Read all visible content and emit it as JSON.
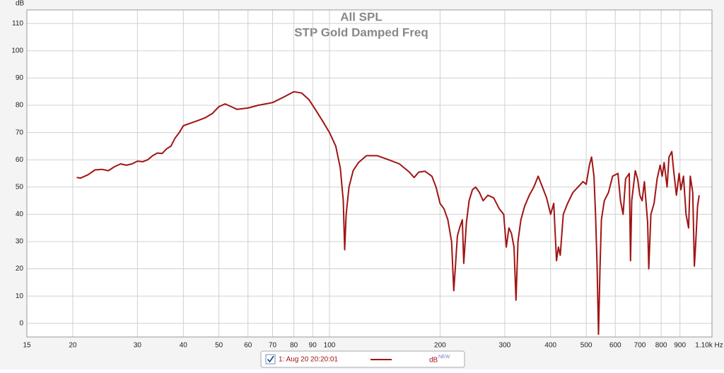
{
  "chart_data": {
    "type": "line",
    "title": "All SPL",
    "subtitle": "STP Gold Damped Freq",
    "y_label": "dB",
    "xscale": "log",
    "grid": true,
    "xlim": [
      15,
      1100
    ],
    "ylim": [
      -5,
      115
    ],
    "xticks": [
      15,
      20,
      30,
      40,
      50,
      60,
      70,
      80,
      90,
      100,
      200,
      300,
      400,
      500,
      600,
      700,
      800,
      900,
      {
        "value": 1100,
        "label": "1.10k Hz"
      }
    ],
    "yticks": [
      0,
      10,
      20,
      30,
      40,
      50,
      60,
      70,
      80,
      90,
      100,
      110
    ],
    "legend": {
      "unit": "dB",
      "badge": "NEW"
    },
    "series": [
      {
        "name": "1: Aug 20 20:20:01",
        "color": "#a01414",
        "x": [
          20.5,
          21,
          22,
          23,
          24,
          25,
          26,
          27,
          28,
          29,
          30,
          31,
          32,
          33,
          34,
          35,
          36,
          37,
          38,
          39,
          40,
          42,
          44,
          46,
          48,
          50,
          52,
          54,
          56,
          60,
          64,
          70,
          75,
          80,
          84,
          88,
          92,
          96,
          100,
          104,
          107,
          109,
          110,
          111,
          113,
          116,
          120,
          126,
          135,
          145,
          155,
          165,
          170,
          175,
          182,
          190,
          195,
          200,
          205,
          210,
          215,
          218,
          220,
          223,
          226,
          230,
          232,
          236,
          240,
          245,
          250,
          256,
          262,
          270,
          280,
          290,
          298,
          303,
          308,
          313,
          318,
          322,
          326,
          332,
          340,
          350,
          360,
          370,
          380,
          390,
          400,
          408,
          415,
          420,
          425,
          433,
          445,
          460,
          475,
          490,
          500,
          510,
          517,
          525,
          530,
          535,
          540,
          545,
          550,
          560,
          575,
          590,
          610,
          620,
          630,
          640,
          655,
          660,
          665,
          680,
          690,
          700,
          710,
          720,
          735,
          740,
          750,
          765,
          780,
          795,
          805,
          815,
          830,
          840,
          855,
          865,
          880,
          895,
          905,
          920,
          935,
          950,
          960,
          975,
          985,
          993,
          1005,
          1015
        ],
        "y": [
          53.5,
          53.3,
          54.5,
          56.3,
          56.5,
          56,
          57.5,
          58.5,
          58,
          58.5,
          59.5,
          59.3,
          60,
          61.5,
          62.5,
          62.3,
          64,
          65,
          68,
          70,
          72.5,
          73.5,
          74.5,
          75.5,
          77,
          79.5,
          80.5,
          79.5,
          78.5,
          79,
          80,
          81,
          83,
          85,
          84.5,
          82,
          78,
          74,
          70,
          65,
          57,
          45,
          27,
          40,
          50,
          56,
          59,
          61.5,
          61.5,
          60,
          58.5,
          55.5,
          53.5,
          55.5,
          55.8,
          54,
          50,
          44,
          42,
          38,
          30,
          12,
          20,
          32,
          35,
          38,
          22,
          37,
          45,
          49,
          50,
          48,
          45,
          47,
          46,
          42,
          40,
          28,
          35,
          33,
          28,
          8.5,
          30,
          38,
          43,
          47,
          50,
          54,
          50,
          46,
          40,
          44,
          23,
          28,
          25,
          40,
          44,
          48,
          50,
          52,
          51,
          58,
          61,
          54,
          40,
          22,
          -4,
          20,
          38,
          45,
          48,
          54,
          55,
          45,
          40,
          53,
          55,
          23,
          45,
          56,
          53,
          47,
          45,
          52,
          37,
          20,
          40,
          44,
          53,
          58,
          54,
          59,
          50,
          61,
          63,
          56,
          47,
          55,
          49,
          54,
          40,
          35,
          54,
          48,
          21,
          29,
          43,
          47
        ]
      }
    ]
  }
}
